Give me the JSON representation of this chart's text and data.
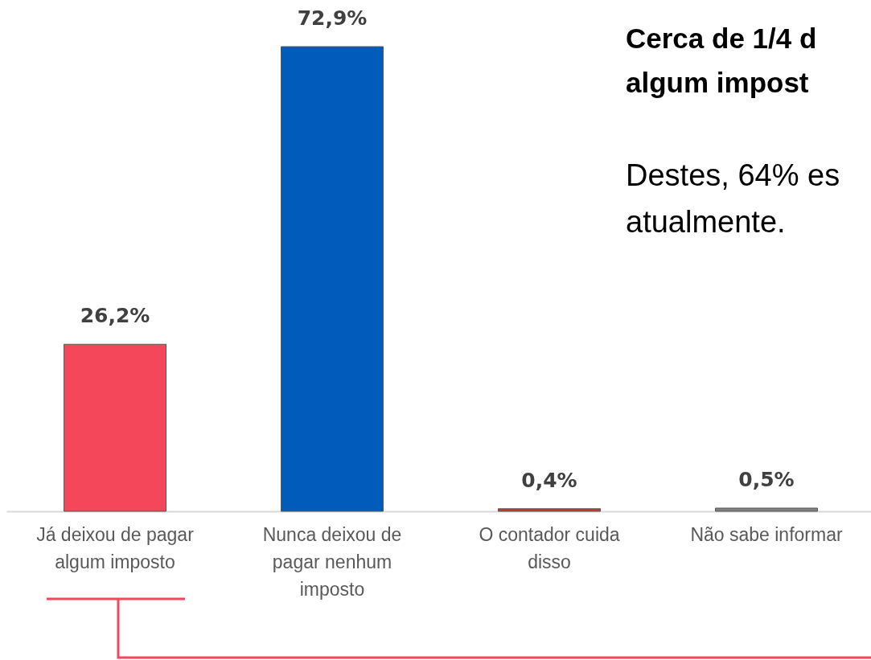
{
  "chart_data": {
    "type": "bar",
    "title": "Cerca de 1/4 d\nalgum impost",
    "subtitle": "Destes, 64% es\natualmente.",
    "categories": [
      "Já deixou de pagar algum imposto",
      "Nunca deixou de pagar nenhum imposto",
      "O contador cuida disso",
      "Não sabe informar"
    ],
    "values": [
      26.2,
      72.9,
      0.4,
      0.5
    ],
    "colors": [
      "#f4475a",
      "#005bbb",
      "#c0392b",
      "#7f7f7f"
    ],
    "value_labels": [
      "26,2%",
      "72,9%",
      "0,4%",
      "0,5%"
    ]
  }
}
